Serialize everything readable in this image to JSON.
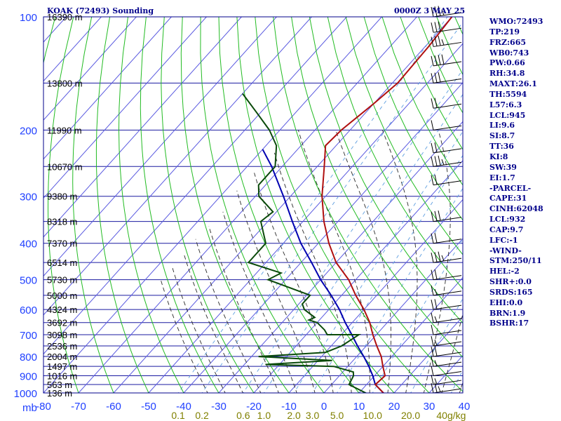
{
  "title": "KOAK (72493) Sounding",
  "datetime": "0000Z  3 MAY 25",
  "stats": [
    "WMO:72493",
    "TP:219",
    "FRZ:665",
    "WB0:743",
    "PW:0.66",
    "RH:34.8",
    "MAXT:26.1",
    "TH:5594",
    "L57:6.3",
    "LCL:945",
    "LI:9.6",
    "SI:8.7",
    "TT:36",
    "KI:8",
    "SW:39",
    "EI:1.7",
    "-PARCEL-",
    "CAPE:31",
    "CINH:62048",
    "LCL:932",
    "CAP:9.7",
    "LFC:-1",
    "-WIND-",
    "STM:250/11",
    "HEL:-2",
    "SHR+:0.0",
    "SRDS:165",
    "EHI:0.0",
    "BRN:1.9",
    "BSHR:17"
  ],
  "colors": {
    "frame": "#00008b",
    "grid": "#1a1aa0",
    "isotherm": "#5a5ae0",
    "dry_adiabat": "#22bb22",
    "moist_adiabat": "#2a2a2a",
    "mixing_ratio": "#5f9fe0",
    "temperature": "#b01010",
    "dewpoint": "#0a4a0a",
    "parcel": "#0000b0",
    "pressure_label": "#2040ff",
    "temp_label": "#2040ff",
    "mixing_label": "#808000",
    "height_label": "#000000",
    "wind_barb": "#000000"
  },
  "chart_data": {
    "type": "skew-t",
    "xlabel": "",
    "ylabel": "mb",
    "temperature_ticks": [
      "-80",
      "-70",
      "-60",
      "-50",
      "-40",
      "-30",
      "-20",
      "-10",
      "0",
      "10",
      "20",
      "30",
      "40"
    ],
    "pressure_ticks": [
      "100",
      "200",
      "300",
      "400",
      "500",
      "600",
      "700",
      "800",
      "900",
      "1000"
    ],
    "mixing_ratio_ticks": [
      "0.1",
      "0.2",
      "0.6",
      "1.0",
      "2.0",
      "3.0",
      "5.0",
      "10.0",
      "20.0",
      "40g/kg"
    ],
    "xlim": [
      -80,
      40
    ],
    "ylim": [
      1000,
      100
    ],
    "height_labels": [
      {
        "p": 100,
        "text": "16390 m"
      },
      {
        "p": 150,
        "text": "13800 m"
      },
      {
        "p": 200,
        "text": "11990 m"
      },
      {
        "p": 250,
        "text": "10670 m"
      },
      {
        "p": 300,
        "text": "9380 m"
      },
      {
        "p": 350,
        "text": "8318 m"
      },
      {
        "p": 400,
        "text": "7370 m"
      },
      {
        "p": 450,
        "text": "6514 m"
      },
      {
        "p": 500,
        "text": "5730 m"
      },
      {
        "p": 550,
        "text": "5000 m"
      },
      {
        "p": 600,
        "text": "4324 m"
      },
      {
        "p": 650,
        "text": "3692 m"
      },
      {
        "p": 700,
        "text": "3098 m"
      },
      {
        "p": 750,
        "text": "2536 m"
      },
      {
        "p": 800,
        "text": "2004 m"
      },
      {
        "p": 850,
        "text": "1497 m"
      },
      {
        "p": 900,
        "text": "1016 m"
      },
      {
        "p": 950,
        "text": "563 m"
      },
      {
        "p": 1000,
        "text": "136 m"
      }
    ],
    "series": [
      {
        "key": "temperature",
        "values": [
          [
            1012,
            18
          ],
          [
            950,
            12.5
          ],
          [
            900,
            13
          ],
          [
            850,
            10
          ],
          [
            800,
            7
          ],
          [
            750,
            3
          ],
          [
            700,
            -1
          ],
          [
            650,
            -5
          ],
          [
            600,
            -10
          ],
          [
            550,
            -16
          ],
          [
            500,
            -22
          ],
          [
            450,
            -30
          ],
          [
            400,
            -37
          ],
          [
            350,
            -44
          ],
          [
            300,
            -51
          ],
          [
            250,
            -58
          ],
          [
            220,
            -63
          ],
          [
            200,
            -62.5
          ],
          [
            170,
            -60
          ],
          [
            150,
            -58.5
          ],
          [
            120,
            -59
          ],
          [
            100,
            -60
          ]
        ]
      },
      {
        "key": "dewpoint",
        "values": [
          [
            1012,
            13.5
          ],
          [
            950,
            5
          ],
          [
            900,
            4
          ],
          [
            880,
            3
          ],
          [
            850,
            -4
          ],
          [
            840,
            -24
          ],
          [
            820,
            -6
          ],
          [
            800,
            -28
          ],
          [
            780,
            -10
          ],
          [
            750,
            -7
          ],
          [
            700,
            -5
          ],
          [
            700,
            -14
          ],
          [
            680,
            -16
          ],
          [
            650,
            -20
          ],
          [
            640,
            -23
          ],
          [
            630,
            -22
          ],
          [
            600,
            -27
          ],
          [
            580,
            -29
          ],
          [
            550,
            -29
          ],
          [
            500,
            -45
          ],
          [
            480,
            -43
          ],
          [
            450,
            -55
          ],
          [
            400,
            -55
          ],
          [
            350,
            -62
          ],
          [
            330,
            -61
          ],
          [
            300,
            -69
          ],
          [
            280,
            -72
          ],
          [
            250,
            -72
          ],
          [
            220,
            -77
          ],
          [
            200,
            -83
          ],
          [
            180,
            -91
          ],
          [
            160,
            -100
          ]
        ]
      },
      {
        "key": "parcel",
        "values": [
          [
            1012,
            18
          ],
          [
            950,
            12.5
          ],
          [
            900,
            9.5
          ],
          [
            850,
            6
          ],
          [
            800,
            2
          ],
          [
            750,
            -2.5
          ],
          [
            700,
            -7
          ],
          [
            650,
            -12
          ],
          [
            600,
            -17
          ],
          [
            550,
            -23
          ],
          [
            500,
            -30
          ],
          [
            450,
            -37
          ],
          [
            400,
            -45
          ],
          [
            350,
            -53
          ],
          [
            300,
            -62
          ],
          [
            250,
            -73
          ],
          [
            225,
            -80
          ]
        ]
      }
    ],
    "wind_barbs": [
      {
        "p": 100,
        "barbs": [
          10,
          10,
          10,
          5
        ]
      },
      {
        "p": 110,
        "barbs": [
          10,
          10,
          10
        ]
      },
      {
        "p": 120,
        "barbs": [
          10,
          10,
          10,
          5
        ]
      },
      {
        "p": 135,
        "barbs": [
          10,
          10,
          10,
          10
        ]
      },
      {
        "p": 150,
        "barbs": [
          10,
          10,
          10
        ]
      },
      {
        "p": 175,
        "barbs": [
          10,
          10
        ]
      },
      {
        "p": 200,
        "barbs": [
          10
        ]
      },
      {
        "p": 230,
        "barbs": [
          10,
          10
        ]
      },
      {
        "p": 250,
        "barbs": [
          10,
          10,
          10,
          5
        ]
      },
      {
        "p": 280,
        "barbs": [
          10,
          10
        ]
      },
      {
        "p": 350,
        "barbs": [
          10,
          10,
          10
        ]
      },
      {
        "p": 400,
        "barbs": [
          10,
          10
        ]
      },
      {
        "p": 450,
        "barbs": [
          10,
          10,
          10,
          5
        ]
      },
      {
        "p": 500,
        "barbs": [
          10,
          10
        ]
      },
      {
        "p": 550,
        "barbs": [
          10,
          5
        ]
      },
      {
        "p": 600,
        "barbs": [
          10,
          10
        ]
      },
      {
        "p": 650,
        "barbs": [
          10,
          5
        ]
      },
      {
        "p": 700,
        "barbs": [
          10
        ]
      },
      {
        "p": 750,
        "barbs": [
          10,
          5
        ]
      },
      {
        "p": 800,
        "barbs": [
          10,
          10
        ]
      },
      {
        "p": 850,
        "barbs": [
          10,
          5
        ]
      },
      {
        "p": 900,
        "barbs": [
          10
        ]
      },
      {
        "p": 950,
        "barbs": [
          10,
          5
        ]
      },
      {
        "p": 1000,
        "barbs": [
          10,
          10,
          5
        ]
      }
    ]
  }
}
